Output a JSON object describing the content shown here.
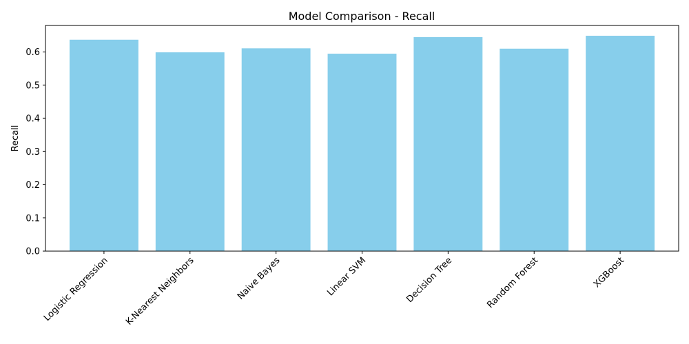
{
  "chart_data": {
    "type": "bar",
    "title": "Model Comparison - Recall",
    "xlabel": "",
    "ylabel": "Recall",
    "categories": [
      "Logistic Regression",
      "K-Nearest Neighbors",
      "Naive Bayes",
      "Linear SVM",
      "Decision Tree",
      "Random Forest",
      "XGBoost"
    ],
    "values": [
      0.637,
      0.599,
      0.611,
      0.595,
      0.645,
      0.61,
      0.649
    ],
    "ylim": [
      0,
      0.68
    ],
    "yticks": [
      "0.0",
      "0.1",
      "0.2",
      "0.3",
      "0.4",
      "0.5",
      "0.6"
    ],
    "bar_color": "#87ceeb",
    "grid": false,
    "legend": "none"
  }
}
